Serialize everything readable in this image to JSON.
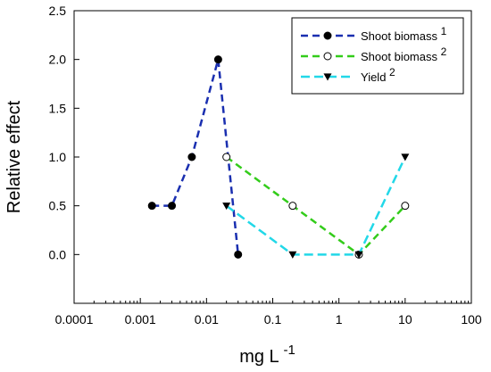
{
  "chart_data": {
    "type": "line",
    "title": "",
    "xlabel": "mg L",
    "xlabel_superscript": "-1",
    "ylabel": "Relative effect",
    "x_scale": "log",
    "xlim": [
      0.0001,
      100
    ],
    "ylim": [
      -0.5,
      2.5
    ],
    "x_ticks": [
      0.0001,
      0.001,
      0.01,
      0.1,
      1,
      10,
      100
    ],
    "x_tick_labels": [
      "0.0001",
      "0.001",
      "0.01",
      "0.1",
      "1",
      "10",
      "100"
    ],
    "y_ticks": [
      0.0,
      0.5,
      1.0,
      1.5,
      2.0,
      2.5
    ],
    "y_tick_labels": [
      "0.0",
      "0.5",
      "1.0",
      "1.5",
      "2.0",
      "2.5"
    ],
    "grid": false,
    "legend_position": "top-right",
    "series": [
      {
        "name": "Shoot biomass",
        "superscript": "1",
        "color": "#1a2fb0",
        "marker": "filled-circle",
        "dash": "8,5",
        "x": [
          0.0015,
          0.003,
          0.006,
          0.015,
          0.03
        ],
        "y": [
          0.5,
          0.5,
          1.0,
          2.0,
          0.0
        ]
      },
      {
        "name": "Shoot biomass",
        "superscript": "2",
        "color": "#33cc1a",
        "marker": "open-circle",
        "dash": "8,5",
        "x": [
          0.02,
          0.2,
          2,
          10
        ],
        "y": [
          1.0,
          0.5,
          0.0,
          0.5
        ]
      },
      {
        "name": "Yield",
        "superscript": "2",
        "color": "#22d8e8",
        "marker": "filled-triangle-down",
        "dash": "10,5",
        "x": [
          0.02,
          0.2,
          2,
          10
        ],
        "y": [
          0.5,
          0.0,
          0.0,
          1.0
        ]
      }
    ]
  }
}
